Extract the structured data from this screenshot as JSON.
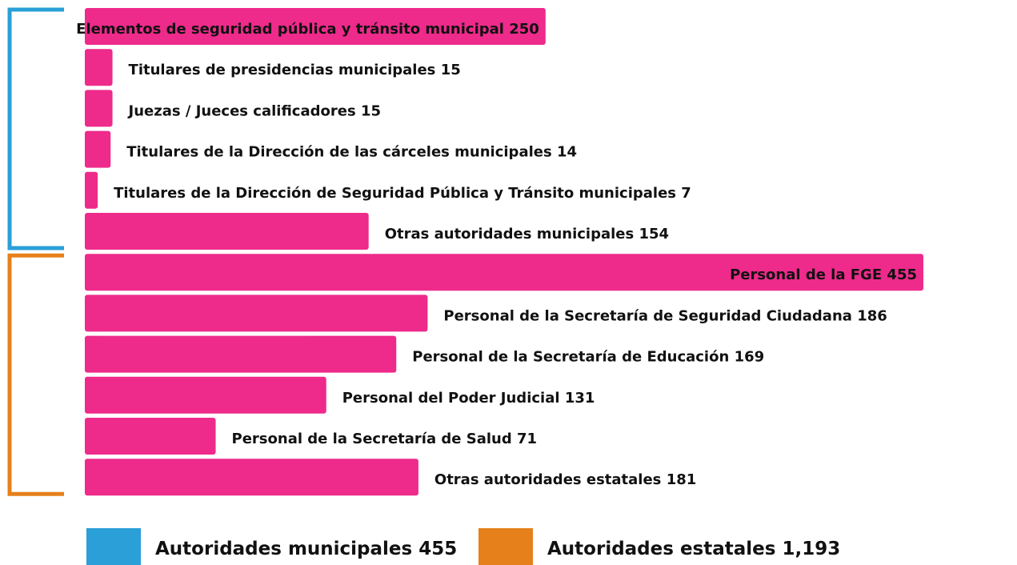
{
  "chart_data": {
    "type": "bar",
    "series": [
      {
        "name": "Autoridades municipales",
        "color": "#2a9fd8",
        "total": 455,
        "categories": [
          "Elementos de seguridad pública y tránsito municipal",
          "Titulares de presidencias municipales",
          "Juezas / Jueces calificadores",
          "Titulares de la Dirección de las cárceles municipales",
          "Titulares de la Dirección de Seguridad Pública y Tránsito municipales",
          "Otras autoridades municipales"
        ],
        "values": [
          250,
          15,
          15,
          14,
          7,
          154
        ]
      },
      {
        "name": "Autoridades estatales",
        "color": "#e6801a",
        "total": 1193,
        "total_label": "1,193",
        "categories": [
          "Personal de la FGE",
          "Personal de la Secretaría de Seguridad Ciudadana",
          "Personal de la Secretaría de Educación",
          "Personal del Poder Judicial",
          "Personal de la Secretaría de Salud",
          "Otras autoridades estatales"
        ],
        "values": [
          455,
          186,
          169,
          131,
          71,
          181
        ]
      }
    ],
    "bar_color": "#ee2a8b"
  }
}
